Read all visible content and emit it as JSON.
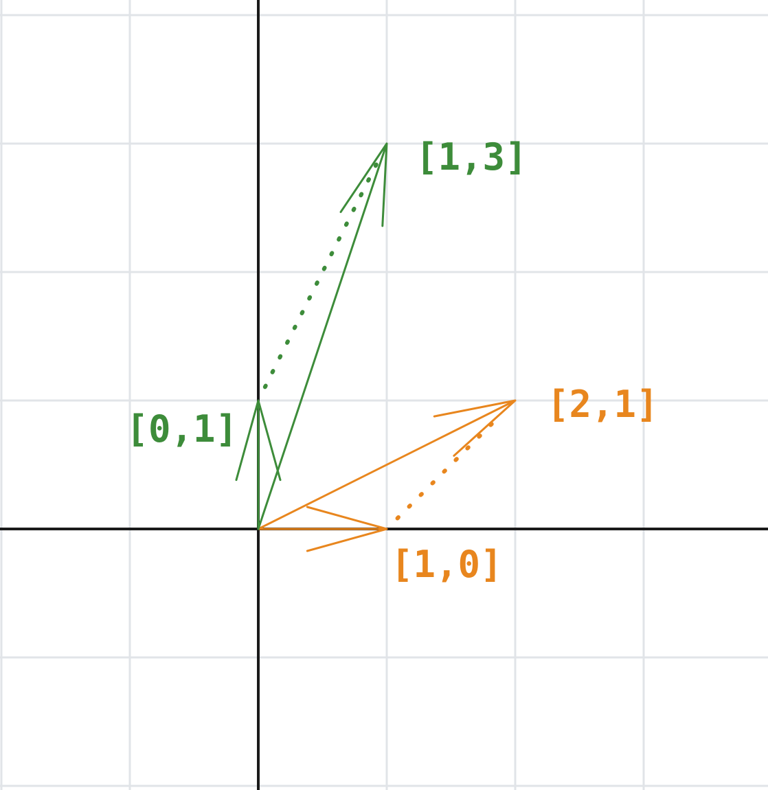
{
  "colors": {
    "green": "#3d8c3a",
    "orange": "#e8861e",
    "axis": "#1a1a1a",
    "grid": "#e1e4e8",
    "background": "#ffffff"
  },
  "vectors": [
    {
      "id": "e1",
      "label": "[1,0]",
      "x": 1,
      "y": 0,
      "color": "orange"
    },
    {
      "id": "Ae1",
      "label": "[2,1]",
      "x": 2,
      "y": 1,
      "color": "orange"
    },
    {
      "id": "e2",
      "label": "[0,1]",
      "x": 0,
      "y": 1,
      "color": "green"
    },
    {
      "id": "Ae2",
      "label": "[1,3]",
      "x": 1,
      "y": 3,
      "color": "green"
    }
  ],
  "transformations": [
    {
      "from": [
        1,
        0
      ],
      "to": [
        2,
        1
      ],
      "color": "orange",
      "style": "dotted"
    },
    {
      "from": [
        0,
        1
      ],
      "to": [
        1,
        3
      ],
      "color": "green",
      "style": "dotted"
    }
  ]
}
